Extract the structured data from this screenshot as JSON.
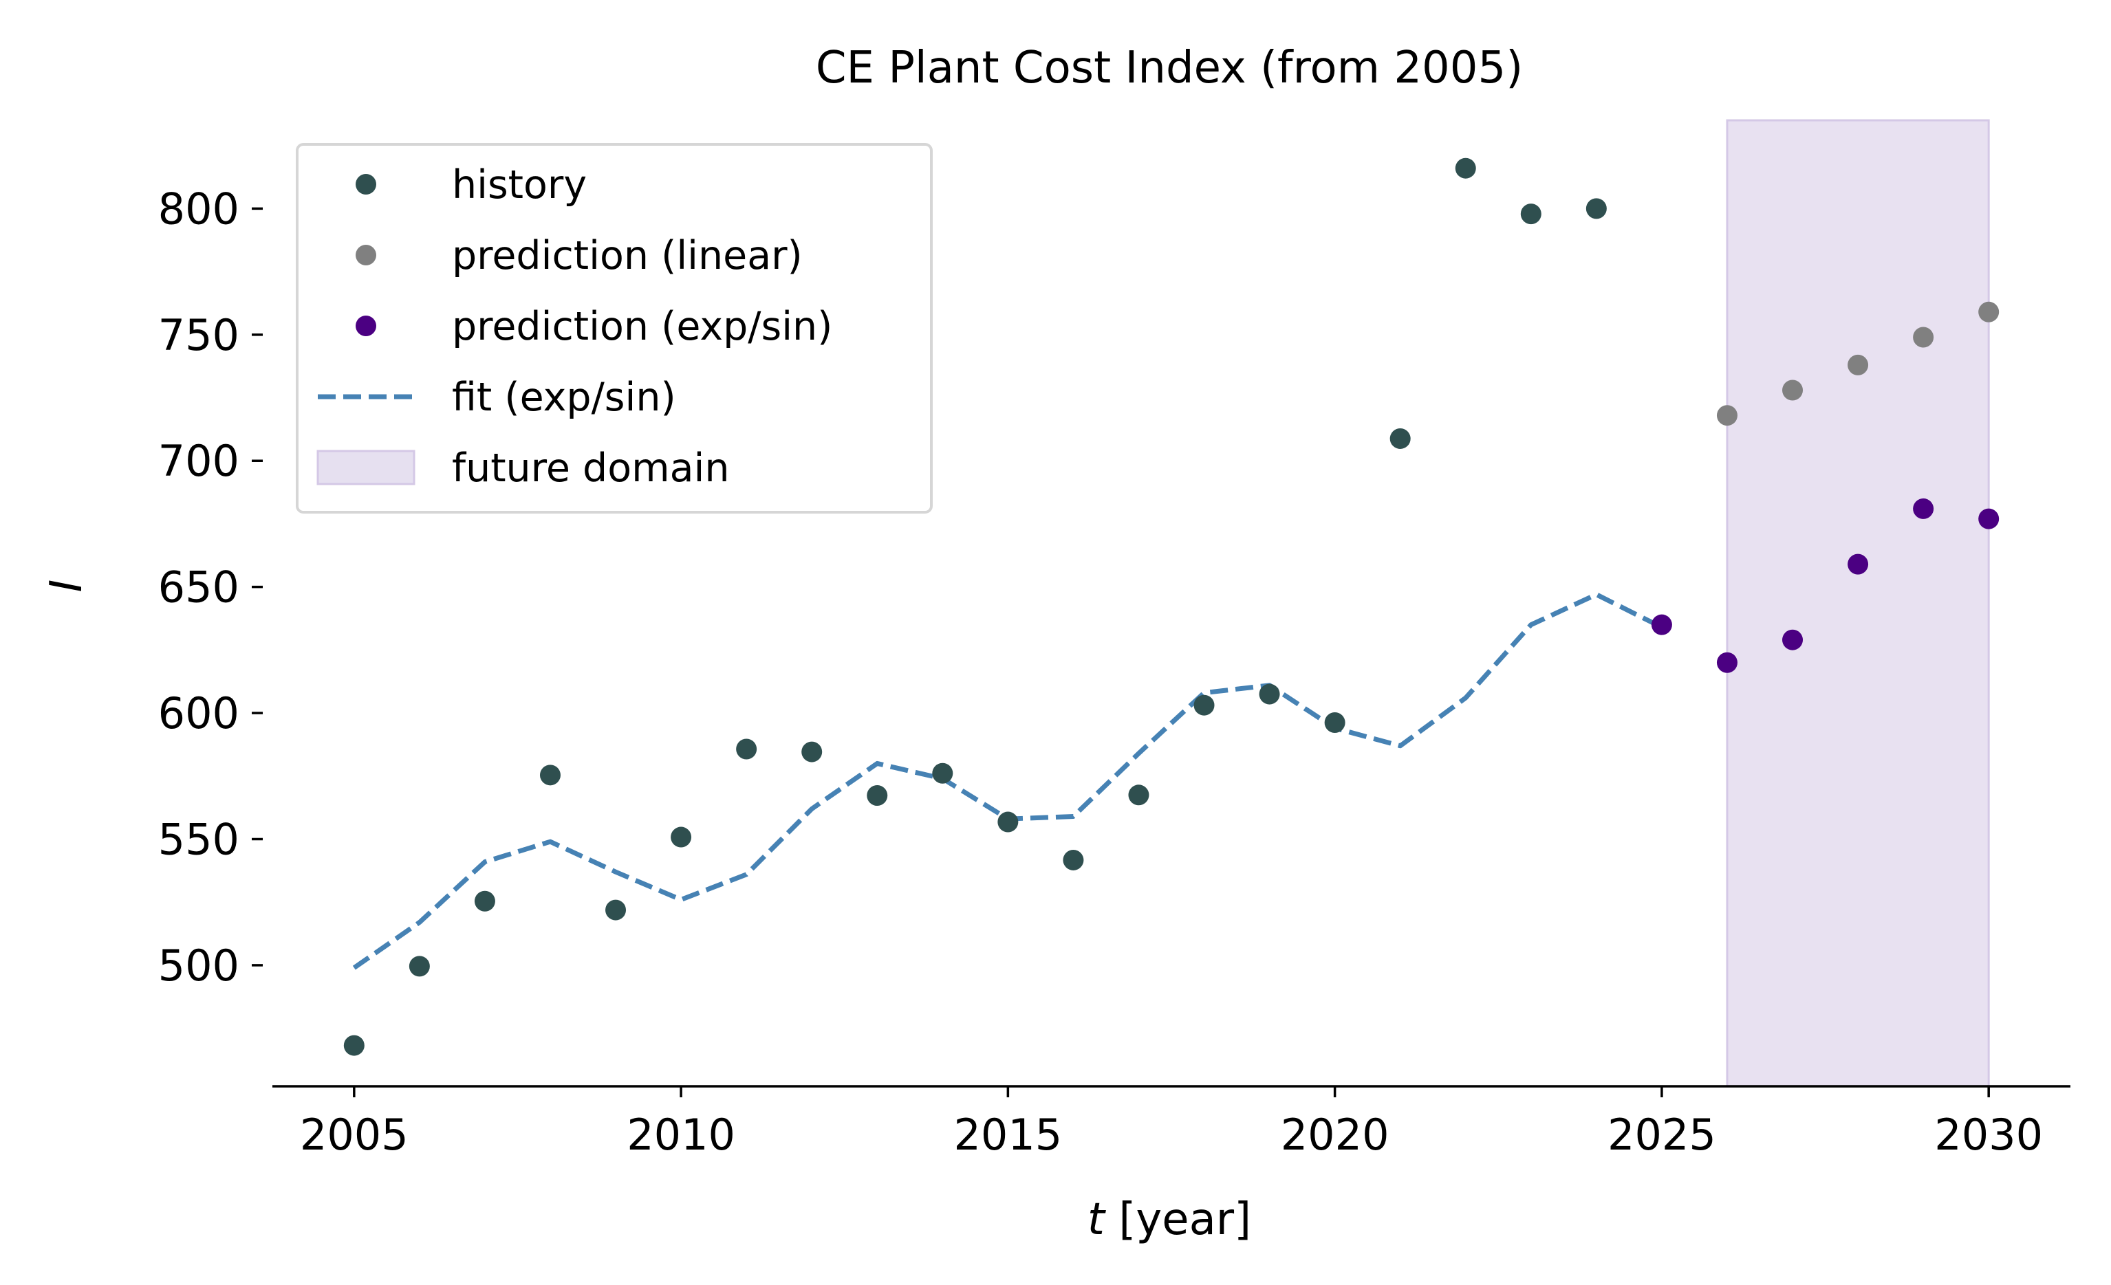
{
  "chart_data": {
    "type": "scatter",
    "title": "CE Plant Cost Index (from 2005)",
    "xlabel": "t [year]",
    "ylabel": "I",
    "xlim": [
      2003.75,
      2031.25
    ],
    "ylim": [
      452,
      835
    ],
    "x_ticks": [
      2005,
      2010,
      2015,
      2020,
      2025,
      2030
    ],
    "y_ticks": [
      500,
      550,
      600,
      650,
      700,
      750,
      800
    ],
    "grid": false,
    "legend_position": "upper-left",
    "future_domain": [
      2026,
      2030
    ],
    "series": [
      {
        "name": "history",
        "kind": "scatter",
        "color": "#2f4f4f",
        "x": [
          2005,
          2006,
          2007,
          2008,
          2009,
          2010,
          2011,
          2012,
          2013,
          2014,
          2015,
          2016,
          2017,
          2018,
          2019,
          2020,
          2021,
          2022,
          2023,
          2024
        ],
        "y": [
          468.2,
          499.6,
          525.4,
          575.4,
          521.9,
          550.8,
          585.7,
          584.6,
          567.3,
          576.1,
          556.8,
          541.7,
          567.5,
          603.1,
          607.5,
          596.2,
          708.8,
          816.0,
          797.9,
          800.0
        ]
      },
      {
        "name": "prediction (linear)",
        "kind": "scatter",
        "color": "#808080",
        "x": [
          2026,
          2027,
          2028,
          2029,
          2030
        ],
        "y": [
          718,
          728,
          738,
          749,
          759
        ]
      },
      {
        "name": "prediction (exp/sin)",
        "kind": "scatter",
        "color": "#4b0082",
        "x": [
          2025,
          2026,
          2027,
          2028,
          2029,
          2030
        ],
        "y": [
          635,
          620,
          629,
          659,
          681,
          677
        ]
      },
      {
        "name": "fit (exp/sin)",
        "kind": "line",
        "style": "dashed",
        "color": "#4682b4",
        "x": [
          2005,
          2006,
          2007,
          2008,
          2009,
          2010,
          2011,
          2012,
          2013,
          2014,
          2015,
          2016,
          2017,
          2018,
          2019,
          2020,
          2021,
          2022,
          2023,
          2024,
          2025
        ],
        "y": [
          499,
          517,
          541,
          549,
          537,
          526,
          536,
          562,
          580,
          574,
          558,
          559,
          584,
          608,
          611,
          594,
          587,
          606,
          635,
          647,
          634
        ]
      }
    ],
    "legend": [
      {
        "label": "history",
        "marker": "dot",
        "color": "#2f4f4f"
      },
      {
        "label": "prediction (linear)",
        "marker": "dot",
        "color": "#808080"
      },
      {
        "label": "prediction (exp/sin)",
        "marker": "dot",
        "color": "#4b0082"
      },
      {
        "label": "fit (exp/sin)",
        "marker": "dashed-line",
        "color": "#4682b4"
      },
      {
        "label": "future domain",
        "marker": "patch",
        "color": "#e6e0f0"
      }
    ]
  }
}
